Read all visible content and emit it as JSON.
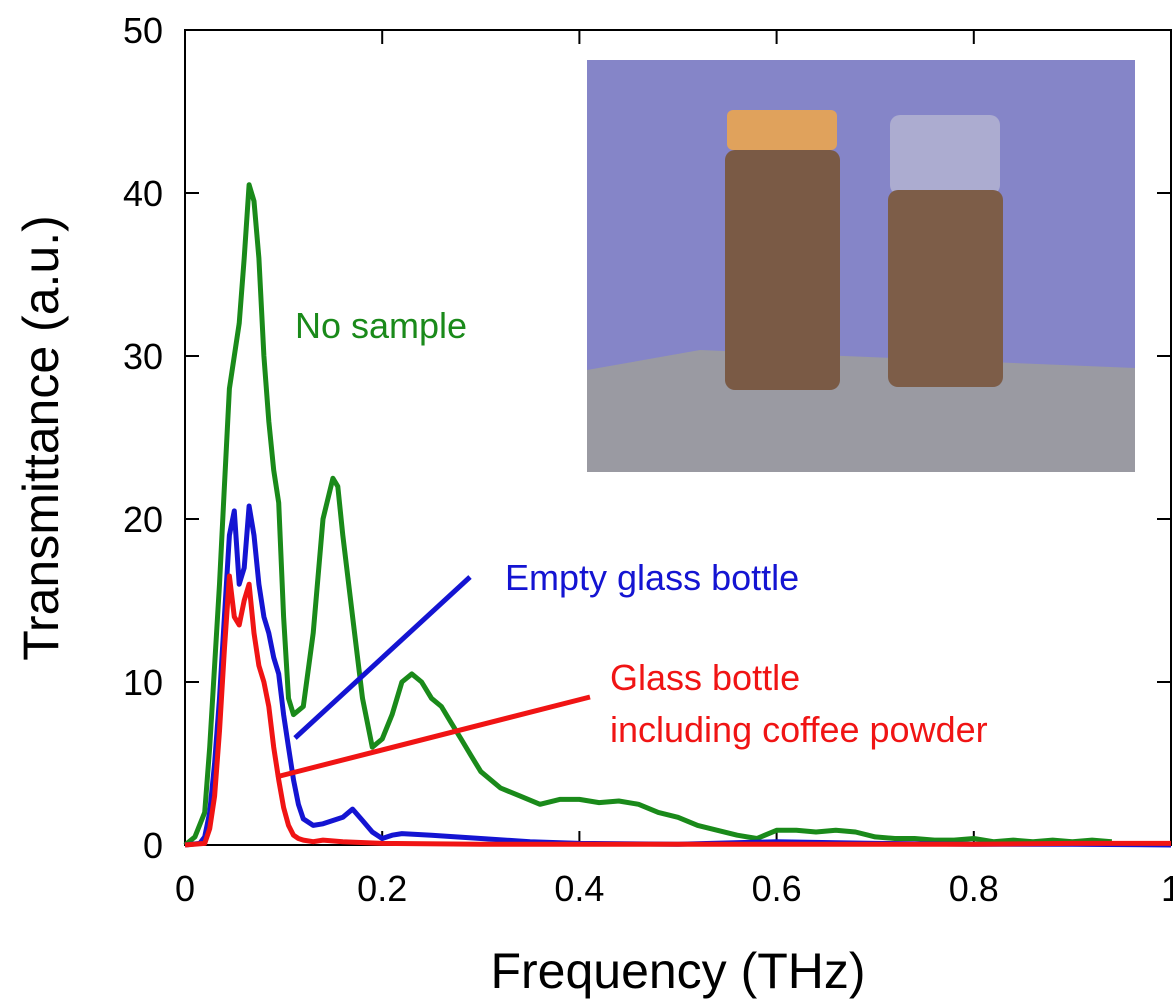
{
  "chart_data": {
    "type": "line",
    "xlabel": "Frequency (THz)",
    "ylabel": "Transmittance (a.u.)",
    "xlim": [
      0,
      1
    ],
    "ylim": [
      0,
      50
    ],
    "xticks": [
      0,
      0.2,
      0.4,
      0.6,
      0.8,
      1
    ],
    "xtick_labels": [
      "0",
      "0.2",
      "0.4",
      "0.6",
      "0.8",
      "1"
    ],
    "yticks": [
      0,
      10,
      20,
      30,
      40,
      50
    ],
    "ytick_labels": [
      "0",
      "10",
      "20",
      "30",
      "40",
      "50"
    ],
    "grid": false,
    "series": [
      {
        "name": "No sample",
        "color": "#1a8a1a",
        "x": [
          0,
          0.01,
          0.02,
          0.025,
          0.03,
          0.035,
          0.04,
          0.045,
          0.05,
          0.055,
          0.06,
          0.065,
          0.07,
          0.075,
          0.08,
          0.085,
          0.09,
          0.095,
          0.1,
          0.105,
          0.11,
          0.12,
          0.13,
          0.14,
          0.15,
          0.155,
          0.16,
          0.17,
          0.18,
          0.19,
          0.2,
          0.21,
          0.22,
          0.23,
          0.24,
          0.25,
          0.26,
          0.27,
          0.28,
          0.29,
          0.3,
          0.32,
          0.34,
          0.36,
          0.38,
          0.4,
          0.42,
          0.44,
          0.46,
          0.48,
          0.5,
          0.52,
          0.54,
          0.56,
          0.58,
          0.6,
          0.62,
          0.64,
          0.66,
          0.68,
          0.7,
          0.72,
          0.74,
          0.76,
          0.78,
          0.8,
          0.82,
          0.84,
          0.86,
          0.88,
          0.9,
          0.92,
          0.94
        ],
        "values": [
          0,
          0.5,
          2,
          6,
          11,
          16,
          22,
          28,
          30,
          32,
          36,
          40.5,
          39.5,
          36,
          30,
          26,
          23,
          21,
          14,
          9,
          8,
          8.5,
          13,
          20,
          22.5,
          22,
          19,
          14,
          9,
          6,
          6.5,
          8,
          10,
          10.5,
          10,
          9,
          8.5,
          7.5,
          6.5,
          5.5,
          4.5,
          3.5,
          3,
          2.5,
          2.8,
          2.8,
          2.6,
          2.7,
          2.5,
          2,
          1.7,
          1.2,
          0.9,
          0.6,
          0.4,
          0.9,
          0.9,
          0.8,
          0.9,
          0.8,
          0.5,
          0.4,
          0.4,
          0.3,
          0.3,
          0.4,
          0.2,
          0.3,
          0.2,
          0.3,
          0.2,
          0.3,
          0.2
        ]
      },
      {
        "name": "Empty glass bottle",
        "color": "#1414d2",
        "x": [
          0,
          0.015,
          0.02,
          0.025,
          0.03,
          0.035,
          0.04,
          0.045,
          0.05,
          0.055,
          0.06,
          0.065,
          0.07,
          0.075,
          0.08,
          0.085,
          0.09,
          0.095,
          0.1,
          0.105,
          0.11,
          0.115,
          0.12,
          0.13,
          0.14,
          0.15,
          0.16,
          0.17,
          0.18,
          0.19,
          0.2,
          0.21,
          0.22,
          0.25,
          0.3,
          0.35,
          0.4,
          0.5,
          0.6,
          0.7,
          0.8,
          0.9,
          1.0
        ],
        "values": [
          0,
          0.1,
          0.5,
          2,
          5,
          9,
          14,
          19,
          20.5,
          16,
          17,
          20.8,
          19,
          16,
          14,
          13,
          11.5,
          10.5,
          8,
          6,
          4,
          2.5,
          1.6,
          1.2,
          1.3,
          1.5,
          1.7,
          2.2,
          1.5,
          0.8,
          0.4,
          0.6,
          0.7,
          0.6,
          0.4,
          0.2,
          0.1,
          0.05,
          0.2,
          0.1,
          0.05,
          0.05,
          0
        ]
      },
      {
        "name": "Glass bottle including coffee powder",
        "color": "#f01414",
        "x": [
          0,
          0.02,
          0.025,
          0.03,
          0.035,
          0.04,
          0.045,
          0.05,
          0.055,
          0.06,
          0.065,
          0.07,
          0.075,
          0.08,
          0.085,
          0.09,
          0.095,
          0.1,
          0.105,
          0.11,
          0.115,
          0.12,
          0.13,
          0.14,
          0.16,
          0.2,
          0.3,
          0.4,
          0.5,
          0.6,
          0.7,
          0.8,
          0.9,
          1.0
        ],
        "values": [
          0,
          0.1,
          1,
          3,
          7,
          12,
          16.5,
          14,
          13.5,
          15,
          16,
          13,
          11,
          10,
          8.5,
          6,
          4,
          2.3,
          1.2,
          0.6,
          0.4,
          0.3,
          0.2,
          0.3,
          0.2,
          0.1,
          0.05,
          0.05,
          0.05,
          0.05,
          0.05,
          0.05,
          0.1,
          0.1
        ]
      }
    ],
    "annotations": [
      {
        "text": "No sample",
        "color": "#1a8a1a"
      },
      {
        "text": "Empty glass bottle",
        "color": "#1414d2"
      },
      {
        "text": "Glass bottle",
        "color": "#f01414"
      },
      {
        "text": "including coffee powder",
        "color": "#f01414"
      }
    ]
  }
}
